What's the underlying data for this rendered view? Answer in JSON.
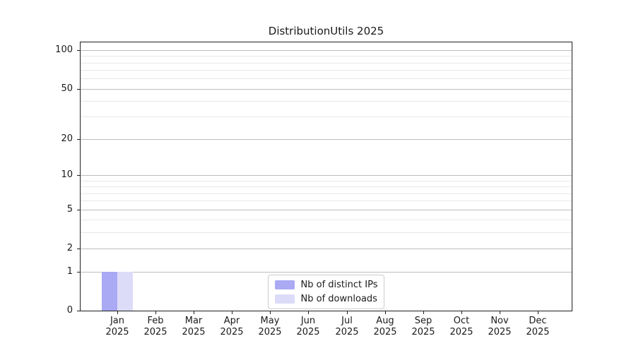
{
  "chart_data": {
    "type": "bar",
    "title": "DistributionUtils 2025",
    "categories": [
      "Jan 2025",
      "Feb 2025",
      "Mar 2025",
      "Apr 2025",
      "May 2025",
      "Jun 2025",
      "Jul 2025",
      "Aug 2025",
      "Sep 2025",
      "Oct 2025",
      "Nov 2025",
      "Dec 2025"
    ],
    "series": [
      {
        "name": "Nb of distinct IPs",
        "color": "#a9a9f4",
        "values": [
          1,
          0,
          0,
          0,
          0,
          0,
          0,
          0,
          0,
          0,
          0,
          0
        ]
      },
      {
        "name": "Nb of downloads",
        "color": "#dcdcf9",
        "values": [
          1,
          0,
          0,
          0,
          0,
          0,
          0,
          0,
          0,
          0,
          0,
          0
        ]
      }
    ],
    "xlabel": "",
    "ylabel": "",
    "yscale": "log1p",
    "ylim": [
      0,
      115
    ],
    "y_major_ticks": [
      0,
      1,
      2,
      5,
      10,
      20,
      50,
      100
    ],
    "y_minor_gridlines": [
      3,
      4,
      6,
      7,
      8,
      9,
      30,
      40,
      60,
      70,
      80,
      90
    ],
    "grid": true,
    "legend_position": "lower center"
  },
  "style": {
    "background": "#ffffff",
    "axis_color": "#1f1f1f",
    "major_grid_color": "#bdbdbd",
    "minor_grid_color": "#e8e8e8",
    "text_color": "#1a1a1a",
    "legend_border_color": "#cccccc"
  }
}
